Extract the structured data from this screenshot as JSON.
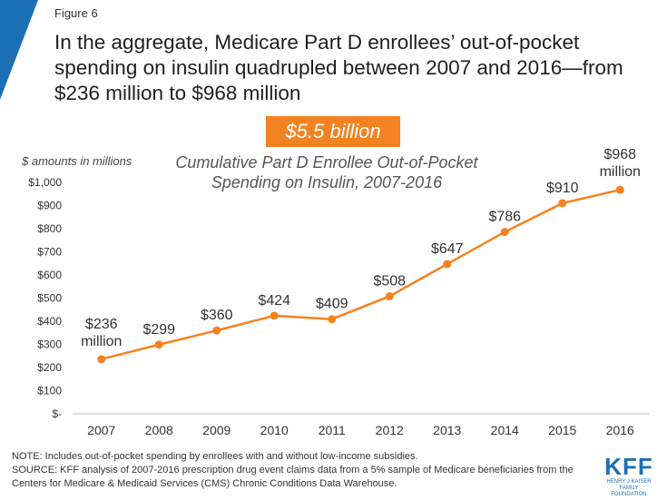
{
  "figure_label": "Figure 6",
  "headline": "In the aggregate, Medicare Part D enrollees’ out-of-pocket spending on insulin quadrupled between 2007 and 2016—from $236 million to $968 million",
  "badge": "$5.5 billion",
  "units_note": "$ amounts in millions",
  "chart_data": {
    "type": "line",
    "title": "Cumulative Part D Enrollee Out-of-Pocket Spending on Insulin, 2007-2016",
    "xlabel": "",
    "ylabel": "",
    "categories": [
      "2007",
      "2008",
      "2009",
      "2010",
      "2011",
      "2012",
      "2013",
      "2014",
      "2015",
      "2016"
    ],
    "series": [
      {
        "values": [
          236,
          299,
          360,
          424,
          409,
          508,
          647,
          786,
          910,
          968
        ],
        "color": "#f58220"
      }
    ],
    "data_labels": [
      "$236 million",
      "$299",
      "$360",
      "$424",
      "$409",
      "$508",
      "$647",
      "$786",
      "$910",
      "$968 million"
    ],
    "y_tick_labels": [
      "$-",
      "$100",
      "$200",
      "$300",
      "$400",
      "$500",
      "$600",
      "$700",
      "$800",
      "$900",
      "$1,000"
    ],
    "ylim": [
      0,
      1000
    ],
    "grid": false,
    "legend": "none"
  },
  "footer": {
    "note": "NOTE: Includes out-of-pocket spending by enrollees with and without low-income subsidies.",
    "source": "SOURCE: KFF analysis of 2007-2016 prescription drug event claims data from a 5% sample of Medicare beneficiaries from the Centers for Medicare & Medicaid Services (CMS) Chronic Conditions Data Warehouse."
  },
  "logo": {
    "main": "KFF",
    "sub1": "HENRY J KAISER",
    "sub2": "FAMILY FOUNDATION"
  },
  "colors": {
    "accent": "#f58220",
    "brand": "#1a6fb5"
  }
}
